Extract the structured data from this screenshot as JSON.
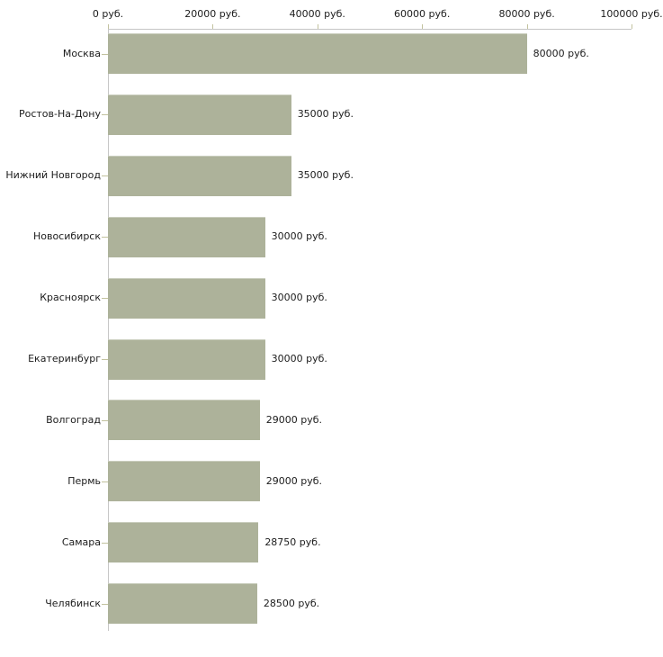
{
  "chart_data": {
    "type": "bar",
    "orientation": "horizontal",
    "title": "",
    "xlabel": "",
    "ylabel": "",
    "categories": [
      "Москва",
      "Ростов-На-Дону",
      "Нижний Новгород",
      "Новосибирск",
      "Красноярск",
      "Екатеринбург",
      "Волгоград",
      "Пермь",
      "Самара",
      "Челябинск"
    ],
    "values": [
      80000,
      35000,
      35000,
      30000,
      30000,
      30000,
      29000,
      29000,
      28750,
      28500
    ],
    "value_labels": [
      "80000 руб.",
      "35000 руб.",
      "35000 руб.",
      "30000 руб.",
      "30000 руб.",
      "30000 руб.",
      "29000 руб.",
      "29000 руб.",
      "28750 руб.",
      "28500 руб."
    ],
    "axis": {
      "min": 0,
      "max": 100000,
      "position": "top",
      "ticks": [
        0,
        20000,
        40000,
        60000,
        80000,
        100000
      ],
      "tick_labels": [
        "0 руб.",
        "20000 руб.",
        "40000 руб.",
        "60000 руб.",
        "80000 руб.",
        "100000 руб."
      ]
    },
    "legend": "none",
    "grid": "off",
    "colors": {
      "bar_fill": "#adb29a",
      "axis_line": "#c6c6c6",
      "tick_mark": "#c2c29e",
      "text": "#1c1c1c",
      "background": "#ffffff"
    }
  }
}
